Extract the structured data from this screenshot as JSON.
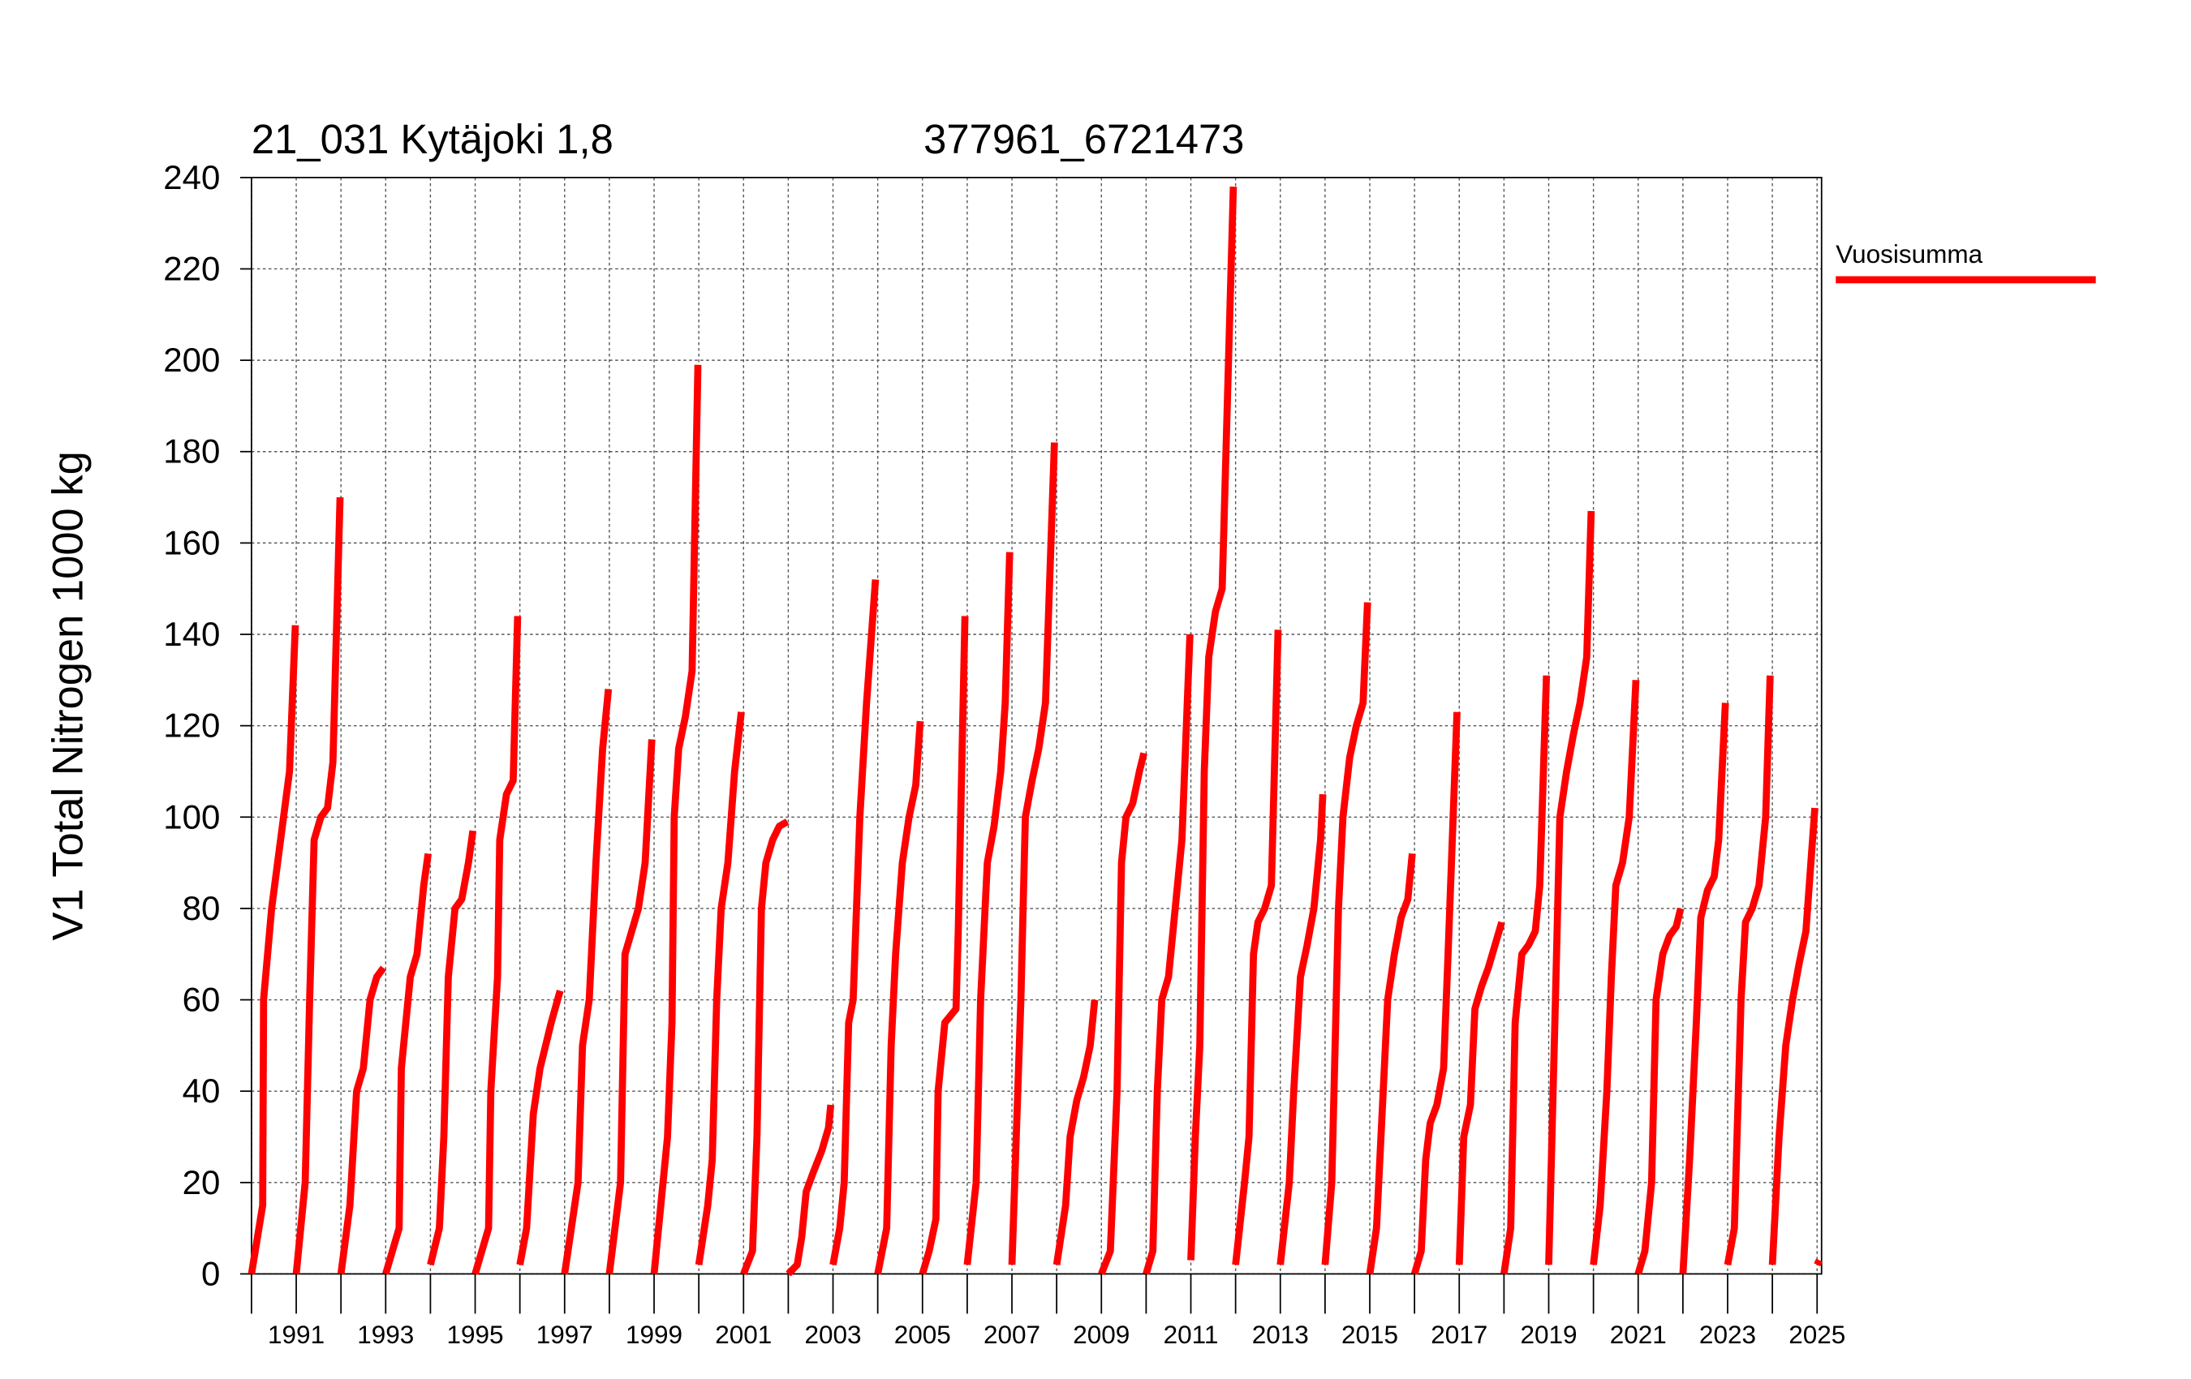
{
  "chart_data": {
    "type": "line",
    "title": "21_031 Kytäjoki 1,8",
    "subtitle": "377961_6721473",
    "y_label": "V1 Total Nitrogen 1000 kg",
    "xlim": [
      1990,
      2025.1
    ],
    "ylim": [
      0,
      240
    ],
    "yticks": [
      0,
      20,
      40,
      60,
      80,
      100,
      120,
      140,
      160,
      180,
      200,
      220,
      240
    ],
    "xticks": [
      1991,
      1993,
      1995,
      1997,
      1999,
      2001,
      2003,
      2005,
      2007,
      2009,
      2011,
      2013,
      2015,
      2017,
      2019,
      2021,
      2023,
      2025
    ],
    "minor_xticks": [
      1990,
      1992,
      1994,
      1996,
      1998,
      2000,
      2002,
      2004,
      2006,
      2008,
      2010,
      2012,
      2014,
      2016,
      2018,
      2020,
      2022,
      2024
    ],
    "grid": true,
    "legend": "right",
    "series": [
      {
        "name": "Vuosisumma",
        "color": "#ff0000",
        "x": [
          1990,
          1990.25,
          1990.27,
          1990.45,
          1990.65,
          1990.85,
          1990.98,
          null,
          1991,
          1991.2,
          1991.3,
          1991.4,
          1991.55,
          1991.7,
          1991.82,
          1991.98,
          null,
          1992,
          1992.2,
          1992.35,
          1992.5,
          1992.65,
          1992.8,
          1992.95,
          null,
          1993,
          1993.3,
          1993.35,
          1993.55,
          1993.7,
          1993.85,
          1993.95,
          null,
          1994,
          1994.2,
          1994.3,
          1994.4,
          1994.55,
          1994.7,
          1994.85,
          1994.95,
          null,
          1995,
          1995.3,
          1995.35,
          1995.5,
          1995.55,
          1995.7,
          1995.85,
          1995.95,
          null,
          1996,
          1996.15,
          1996.3,
          1996.45,
          1996.7,
          1996.9,
          null,
          1997,
          1997.3,
          1997.4,
          1997.55,
          1997.7,
          1997.85,
          1997.98,
          null,
          1998,
          1998.25,
          1998.35,
          1998.5,
          1998.65,
          1998.8,
          1998.95,
          null,
          1999,
          1999.3,
          1999.4,
          1999.45,
          1999.55,
          1999.7,
          1999.85,
          1999.98,
          null,
          2000,
          2000.2,
          2000.3,
          2000.4,
          2000.5,
          2000.65,
          2000.8,
          2000.95,
          null,
          2001,
          2001.2,
          2001.3,
          2001.4,
          2001.5,
          2001.65,
          2001.8,
          2001.98,
          null,
          2002,
          2002.2,
          2002.3,
          2002.4,
          2002.55,
          2002.75,
          2002.9,
          2002.95,
          null,
          2003,
          2003.15,
          2003.25,
          2003.35,
          2003.45,
          2003.6,
          2003.75,
          2003.95,
          null,
          2004,
          2004.2,
          2004.3,
          2004.4,
          2004.55,
          2004.7,
          2004.85,
          2004.95,
          null,
          2005,
          2005.15,
          2005.3,
          2005.35,
          2005.5,
          2005.75,
          2005.8,
          2005.95,
          null,
          2006,
          2006.2,
          2006.3,
          2006.45,
          2006.6,
          2006.75,
          2006.85,
          2006.95,
          null,
          2007,
          2007.2,
          2007.3,
          2007.45,
          2007.6,
          2007.75,
          2007.95,
          null,
          2008,
          2008.2,
          2008.3,
          2008.45,
          2008.6,
          2008.75,
          2008.85,
          null,
          2009,
          2009.2,
          2009.35,
          2009.45,
          2009.55,
          2009.7,
          2009.85,
          2009.95,
          null,
          2010,
          2010.15,
          2010.25,
          2010.35,
          2010.5,
          2010.65,
          2010.8,
          2010.98,
          null,
          2011,
          2011.1,
          2011.2,
          2011.3,
          2011.4,
          2011.55,
          2011.7,
          2011.95,
          null,
          2012,
          2012.2,
          2012.3,
          2012.4,
          2012.5,
          2012.65,
          2012.8,
          2012.95,
          null,
          2013,
          2013.2,
          2013.3,
          2013.45,
          2013.6,
          2013.75,
          2013.9,
          2013.95,
          null,
          2014,
          2014.15,
          2014.3,
          2014.4,
          2014.55,
          2014.7,
          2014.85,
          2014.95,
          null,
          2015,
          2015.15,
          2015.3,
          2015.4,
          2015.55,
          2015.7,
          2015.85,
          2015.95,
          null,
          2016,
          2016.15,
          2016.25,
          2016.35,
          2016.5,
          2016.65,
          2016.75,
          2016.95,
          null,
          2017,
          2017.1,
          2017.25,
          2017.35,
          2017.5,
          2017.65,
          2017.8,
          2017.95,
          null,
          2018,
          2018.15,
          2018.25,
          2018.4,
          2018.55,
          2018.7,
          2018.8,
          2018.95,
          null,
          2019,
          2019.15,
          2019.25,
          2019.4,
          2019.55,
          2019.7,
          2019.85,
          2019.95,
          null,
          2020,
          2020.15,
          2020.3,
          2020.4,
          2020.5,
          2020.65,
          2020.8,
          2020.95,
          null,
          2021,
          2021.15,
          2021.3,
          2021.4,
          2021.55,
          2021.7,
          2021.85,
          2021.95,
          null,
          2022,
          2022.15,
          2022.3,
          2022.4,
          2022.55,
          2022.7,
          2022.8,
          2022.95,
          null,
          2023,
          2023.15,
          2023.3,
          2023.4,
          2023.55,
          2023.7,
          2023.85,
          2023.95,
          null,
          2024,
          2024.15,
          2024.3,
          2024.45,
          2024.6,
          2024.75,
          2024.95,
          null,
          2025,
          2025.05
        ],
        "values": [
          0,
          15,
          60,
          80,
          95,
          110,
          142,
          null,
          0,
          20,
          60,
          95,
          100,
          102,
          112,
          170,
          null,
          0,
          15,
          40,
          45,
          60,
          65,
          67,
          null,
          0,
          10,
          45,
          65,
          70,
          85,
          92,
          null,
          2,
          10,
          30,
          65,
          80,
          82,
          90,
          97,
          null,
          0,
          10,
          40,
          65,
          95,
          105,
          108,
          144,
          null,
          2,
          10,
          35,
          45,
          55,
          62,
          null,
          0,
          20,
          50,
          60,
          90,
          115,
          128,
          null,
          0,
          20,
          70,
          75,
          80,
          90,
          117,
          null,
          0,
          30,
          55,
          100,
          115,
          122,
          132,
          199,
          null,
          2,
          15,
          25,
          60,
          80,
          90,
          110,
          123,
          null,
          0,
          5,
          30,
          80,
          90,
          95,
          98,
          99,
          null,
          0,
          2,
          8,
          18,
          22,
          27,
          32,
          37,
          null,
          2,
          10,
          20,
          55,
          60,
          100,
          125,
          152,
          null,
          0,
          10,
          50,
          70,
          90,
          100,
          107,
          121,
          null,
          0,
          5,
          12,
          40,
          55,
          58,
          75,
          144,
          null,
          2,
          20,
          60,
          90,
          98,
          110,
          125,
          158,
          null,
          2,
          60,
          100,
          108,
          115,
          125,
          182,
          null,
          2,
          15,
          30,
          38,
          43,
          50,
          60,
          null,
          0,
          5,
          40,
          90,
          100,
          103,
          110,
          114,
          null,
          0,
          5,
          40,
          60,
          65,
          80,
          95,
          140,
          null,
          3,
          30,
          50,
          110,
          135,
          145,
          150,
          238,
          null,
          2,
          20,
          30,
          70,
          77,
          80,
          85,
          141,
          null,
          2,
          20,
          40,
          65,
          72,
          80,
          95,
          105,
          null,
          2,
          20,
          80,
          100,
          113,
          120,
          125,
          147,
          null,
          0,
          10,
          40,
          60,
          70,
          78,
          82,
          92,
          null,
          0,
          5,
          25,
          33,
          37,
          45,
          70,
          123,
          null,
          2,
          30,
          37,
          58,
          63,
          67,
          72,
          77,
          null,
          0,
          10,
          55,
          70,
          72,
          75,
          85,
          131,
          null,
          2,
          60,
          100,
          110,
          118,
          125,
          135,
          167,
          null,
          2,
          15,
          40,
          65,
          85,
          90,
          100,
          130,
          null,
          0,
          5,
          20,
          60,
          70,
          74,
          76,
          80,
          null,
          0,
          25,
          55,
          78,
          84,
          87,
          95,
          125,
          null,
          2,
          10,
          60,
          77,
          80,
          85,
          100,
          131,
          null,
          2,
          30,
          50,
          60,
          68,
          75,
          102,
          null,
          2,
          3
        ]
      }
    ]
  }
}
